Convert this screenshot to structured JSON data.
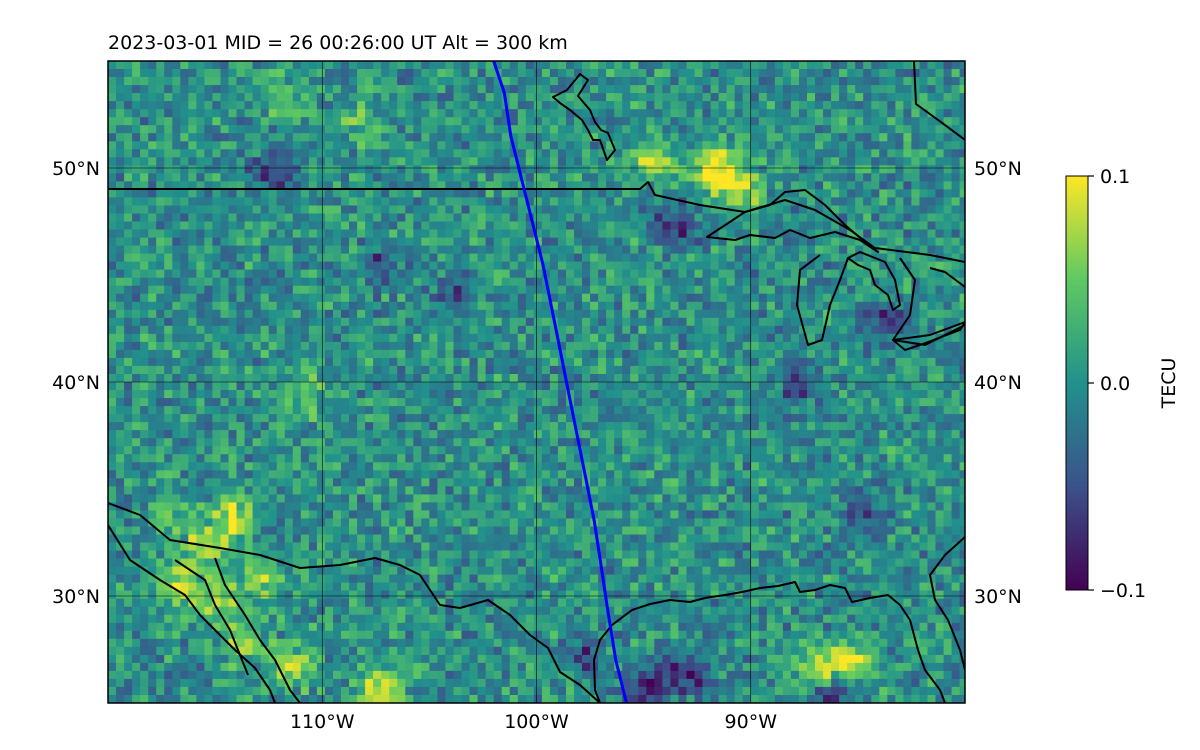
{
  "title": "2023-03-01  MID =  26    00:26:00  UT  Alt = 300 km",
  "map": {
    "lon_range": [
      -120,
      -80
    ],
    "lat_range": [
      25,
      55
    ],
    "lat_ticks": [
      {
        "value": 50,
        "label": "50°N"
      },
      {
        "value": 40,
        "label": "40°N"
      },
      {
        "value": 30,
        "label": "30°N"
      }
    ],
    "lon_ticks": [
      {
        "value": -110,
        "label": "110°W"
      },
      {
        "value": -100,
        "label": "100°W"
      },
      {
        "value": -90,
        "label": "90°W"
      }
    ],
    "grid": true,
    "track_color": "#0000ff",
    "track": [
      [
        -102.0,
        55
      ],
      [
        -101.5,
        53.5
      ],
      [
        -101.2,
        51.5
      ],
      [
        -100.7,
        49.5
      ],
      [
        -100.2,
        47.5
      ],
      [
        -99.7,
        45.5
      ],
      [
        -99.3,
        43.5
      ],
      [
        -98.9,
        41.5
      ],
      [
        -98.5,
        39.5
      ],
      [
        -98.1,
        37.5
      ],
      [
        -97.7,
        35.5
      ],
      [
        -97.3,
        33.5
      ],
      [
        -97.0,
        31.5
      ],
      [
        -96.7,
        29.5
      ],
      [
        -96.3,
        27.0
      ],
      [
        -95.8,
        25
      ]
    ],
    "hotspots": [
      [
        -94.6,
        50.6,
        0.1
      ],
      [
        -92.1,
        50.3,
        0.09
      ],
      [
        -90.6,
        49.1,
        0.08
      ],
      [
        -114.3,
        33.8,
        0.1
      ],
      [
        -115.6,
        32.5,
        0.1
      ],
      [
        -116.8,
        30.6,
        0.1
      ],
      [
        -114.0,
        28.0,
        0.08
      ],
      [
        -115.0,
        30.0,
        0.09
      ],
      [
        -113.0,
        31.0,
        0.07
      ],
      [
        -107.5,
        26.0,
        0.1
      ],
      [
        -111.5,
        27.0,
        0.08
      ],
      [
        -87.0,
        26.8,
        0.09
      ],
      [
        -85.5,
        27.2,
        0.08
      ],
      [
        -117.5,
        34.0,
        0.06
      ],
      [
        -111.0,
        39.5,
        0.06
      ],
      [
        -91.5,
        49.8,
        0.07
      ],
      [
        -108.5,
        52.5,
        0.05
      ],
      [
        -112.0,
        53.5,
        0.05
      ]
    ],
    "coldspots": [
      [
        -95.0,
        26.0,
        -0.1
      ],
      [
        -93.0,
        26.5,
        -0.09
      ],
      [
        -86.5,
        25.5,
        -0.08
      ],
      [
        -93.8,
        47.4,
        -0.09
      ],
      [
        -84.0,
        43.0,
        -0.07
      ],
      [
        -107.5,
        45.5,
        -0.06
      ],
      [
        -112.5,
        50.0,
        -0.07
      ],
      [
        -98.0,
        27.5,
        -0.07
      ],
      [
        -85.0,
        34.0,
        -0.06
      ],
      [
        -104.0,
        44.0,
        -0.07
      ],
      [
        -88.0,
        40.0,
        -0.06
      ]
    ]
  },
  "colorbar": {
    "label": "TECU",
    "range": [
      -0.1,
      0.1
    ],
    "ticks": [
      {
        "value": 0.1,
        "label": "0.1"
      },
      {
        "value": 0.0,
        "label": "0.0"
      },
      {
        "value": -0.1,
        "label": "−0.1"
      }
    ],
    "colormap": [
      "#440154",
      "#3b528b",
      "#21918c",
      "#5ec962",
      "#fde725"
    ]
  }
}
